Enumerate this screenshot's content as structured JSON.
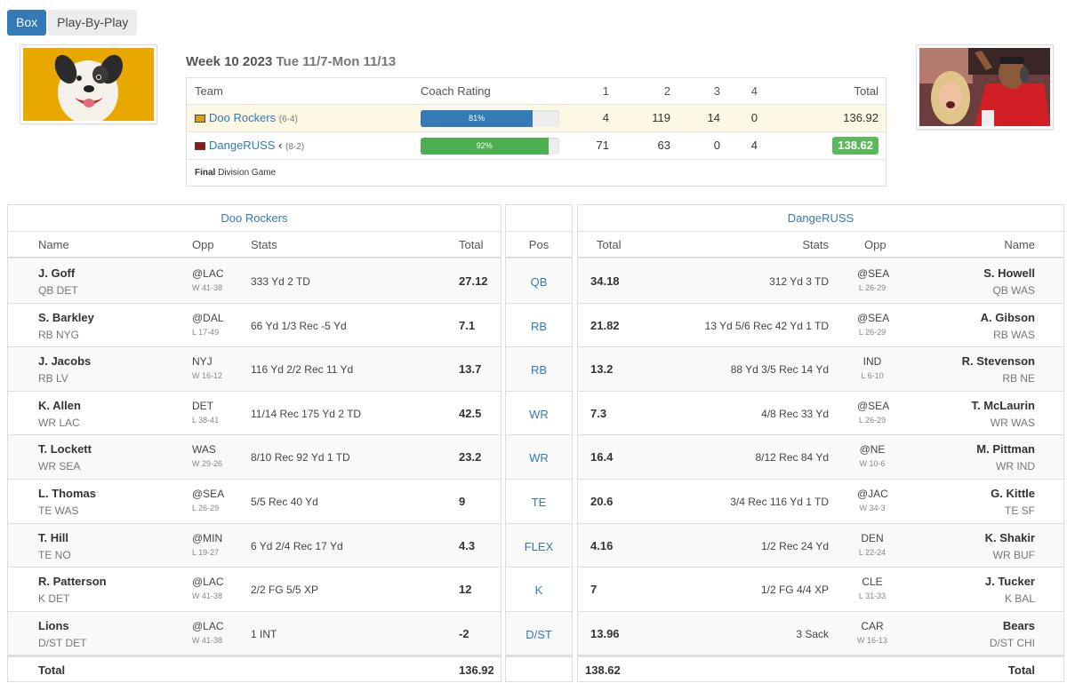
{
  "tabs": {
    "box": "Box",
    "play_by_play": "Play-By-Play"
  },
  "header": {
    "week": "Week 10 2023",
    "dates": "Tue 11/7-Mon 11/13"
  },
  "scoreboard": {
    "headers": {
      "team": "Team",
      "coach_rating": "Coach Rating",
      "q1": "1",
      "q2": "2",
      "q3": "3",
      "q4": "4",
      "total": "Total"
    },
    "teams": [
      {
        "name": "Doo Rockers",
        "record": "(6-4)",
        "rating_label": "81%",
        "rating": 0.81,
        "q1": "4",
        "q2": "119",
        "q3": "14",
        "q4": "0",
        "total": "136.92",
        "logo_color": "#d4a017"
      },
      {
        "name": "DangeRUSS",
        "marker": "‹",
        "record": "(8-2)",
        "rating_label": "92%",
        "rating": 0.92,
        "q1": "71",
        "q2": "63",
        "q3": "0",
        "q4": "4",
        "total": "138.62",
        "logo_color": "#8b1a1a"
      }
    ],
    "footer_status": "Final",
    "footer_note": "Division Game"
  },
  "left": {
    "title": "Doo Rockers",
    "headers": {
      "name": "Name",
      "opp": "Opp",
      "stats": "Stats",
      "total": "Total"
    },
    "players": [
      {
        "name": "J. Goff",
        "pos": "QB DET",
        "opp": "@LAC",
        "result": "W 41-38",
        "stats": "333 Yd 2 TD",
        "total": "27.12"
      },
      {
        "name": "S. Barkley",
        "pos": "RB NYG",
        "opp": "@DAL",
        "result": "L 17-49",
        "stats": "66 Yd 1/3 Rec -5 Yd",
        "total": "7.1"
      },
      {
        "name": "J. Jacobs",
        "pos": "RB LV",
        "opp": "NYJ",
        "result": "W 16-12",
        "stats": "116 Yd 2/2 Rec 11 Yd",
        "total": "13.7"
      },
      {
        "name": "K. Allen",
        "pos": "WR LAC",
        "opp": "DET",
        "result": "L 38-41",
        "stats": "11/14 Rec 175 Yd 2 TD",
        "total": "42.5"
      },
      {
        "name": "T. Lockett",
        "pos": "WR SEA",
        "opp": "WAS",
        "result": "W 29-26",
        "stats": "8/10 Rec 92 Yd 1 TD",
        "total": "23.2"
      },
      {
        "name": "L. Thomas",
        "pos": "TE WAS",
        "opp": "@SEA",
        "result": "L 26-29",
        "stats": "5/5 Rec 40 Yd",
        "total": "9"
      },
      {
        "name": "T. Hill",
        "pos": "TE NO",
        "opp": "@MIN",
        "result": "L 19-27",
        "stats": "6 Yd 2/4 Rec 17 Yd",
        "total": "4.3"
      },
      {
        "name": "R. Patterson",
        "pos": "K DET",
        "opp": "@LAC",
        "result": "W 41-38",
        "stats": "2/2 FG 5/5 XP",
        "total": "12"
      },
      {
        "name": "Lions",
        "pos": "D/ST DET",
        "opp": "@LAC",
        "result": "W 41-38",
        "stats": "1 INT",
        "total": "-2"
      }
    ],
    "total_label": "Total",
    "total_value": "136.92"
  },
  "middle": {
    "header": "Pos",
    "positions": [
      "QB",
      "RB",
      "RB",
      "WR",
      "WR",
      "TE",
      "FLEX",
      "K",
      "D/ST"
    ]
  },
  "right": {
    "title": "DangeRUSS",
    "headers": {
      "total": "Total",
      "stats": "Stats",
      "opp": "Opp",
      "name": "Name"
    },
    "players": [
      {
        "name": "S. Howell",
        "pos": "QB WAS",
        "opp": "@SEA",
        "result": "L 26-29",
        "stats": "312 Yd 3 TD",
        "total": "34.18"
      },
      {
        "name": "A. Gibson",
        "pos": "RB WAS",
        "opp": "@SEA",
        "result": "L 26-29",
        "stats": "13 Yd 5/6 Rec 42 Yd 1 TD",
        "total": "21.82"
      },
      {
        "name": "R. Stevenson",
        "pos": "RB NE",
        "opp": "IND",
        "result": "L 6-10",
        "stats": "88 Yd 3/5 Rec 14 Yd",
        "total": "13.2"
      },
      {
        "name": "T. McLaurin",
        "pos": "WR WAS",
        "opp": "@SEA",
        "result": "L 26-29",
        "stats": "4/8 Rec 33 Yd",
        "total": "7.3"
      },
      {
        "name": "M. Pittman",
        "pos": "WR IND",
        "opp": "@NE",
        "result": "W 10-6",
        "stats": "8/12 Rec 84 Yd",
        "total": "16.4"
      },
      {
        "name": "G. Kittle",
        "pos": "TE SF",
        "opp": "@JAC",
        "result": "W 34-3",
        "stats": "3/4 Rec 116 Yd 1 TD",
        "total": "20.6"
      },
      {
        "name": "K. Shakir",
        "pos": "WR BUF",
        "opp": "DEN",
        "result": "L 22-24",
        "stats": "1/2 Rec 24 Yd",
        "total": "4.16"
      },
      {
        "name": "J. Tucker",
        "pos": "K BAL",
        "opp": "CLE",
        "result": "L 31-33",
        "stats": "1/2 FG 4/4 XP",
        "total": "7"
      },
      {
        "name": "Bears",
        "pos": "D/ST CHI",
        "opp": "CAR",
        "result": "W 16-13",
        "stats": "3 Sack",
        "total": "13.96"
      }
    ],
    "total_label": "Total",
    "total_value": "138.62"
  },
  "colors": {
    "accent": "#337ab7",
    "win": "#5cb85c",
    "highlight_row": "#fcf8e3"
  }
}
